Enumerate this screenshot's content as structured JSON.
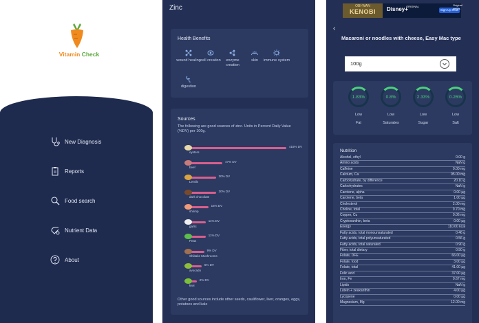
{
  "panel1": {
    "brand_part1": "Vitamin",
    "brand_part2": "Check",
    "menu": [
      {
        "label": "New Diagnosis",
        "icon": "stethoscope-icon"
      },
      {
        "label": "Reports",
        "icon": "clipboard-icon"
      },
      {
        "label": "Food search",
        "icon": "search-icon"
      },
      {
        "label": "Nutrient Data",
        "icon": "nutrient-data-icon"
      },
      {
        "label": "About",
        "icon": "question-icon"
      }
    ]
  },
  "panel2": {
    "title": "Zinc",
    "health_benefits_title": "Health Benefits",
    "benefits": [
      {
        "label": "wound healing",
        "icon": "molecule-icon"
      },
      {
        "label": "cell creation",
        "icon": "cell-icon"
      },
      {
        "label": "enzyme creation",
        "icon": "enzyme-icon"
      },
      {
        "label": "skin",
        "icon": "skin-icon"
      },
      {
        "label": "immune system",
        "icon": "immune-icon"
      },
      {
        "label": "digestion",
        "icon": "digestion-icon"
      }
    ],
    "sources_title": "Sources",
    "sources_desc": "The following are good sources of zinc. Units in Percent Daily Value (%DV) per 100g.",
    "sources": [
      {
        "name": "oysters",
        "dv": "415% DV",
        "percent": 415,
        "color": "#e8d9a8"
      },
      {
        "name": "beef",
        "dv": "47% DV",
        "percent": 47,
        "color": "#c97b7b"
      },
      {
        "name": "Lentils",
        "dv": "30% DV",
        "percent": 30,
        "color": "#d9a441"
      },
      {
        "name": "dark chocolate",
        "dv": "30% DV",
        "percent": 30,
        "color": "#7a4a2a"
      },
      {
        "name": "shrimp",
        "dv": "15% DV",
        "percent": 15,
        "color": "#f09a7a"
      },
      {
        "name": "garlic",
        "dv": "11% DV",
        "percent": 11,
        "color": "#eeeeee"
      },
      {
        "name": "Peas",
        "dv": "11% DV",
        "percent": 11,
        "color": "#5bbf4a"
      },
      {
        "name": "Shiitake Mushrooms",
        "dv": "9% DV",
        "percent": 9,
        "color": "#a07050"
      },
      {
        "name": "avocado",
        "dv": "6% DV",
        "percent": 6,
        "color": "#8fbf3a"
      },
      {
        "name": "kiwi",
        "dv": "2% DV",
        "percent": 2,
        "color": "#7cbf3a"
      }
    ],
    "other_sources": "Other good sources include other seeds, cauliflower, liver, oranges, eggs, potatoes and kale"
  },
  "panel3": {
    "ad": {
      "top_text": "Original series",
      "kenobi_small": "OBI-WAN",
      "kenobi_big": "KENOBI",
      "disney": "Disney+",
      "disney_small": "ORIGINAL",
      "signup": "Sign Up Now"
    },
    "back_glyph": "‹",
    "food_title": "Macaroni or noodles with cheese, Easy Mac type",
    "serving": "100g",
    "rings": [
      {
        "value": "1.83%",
        "level": "Low",
        "name": "Fat"
      },
      {
        "value": "0.8%",
        "level": "Low",
        "name": "Saturates"
      },
      {
        "value": "2.33%",
        "level": "Low",
        "name": "Sugar"
      },
      {
        "value": "0.26%",
        "level": "Low",
        "name": "Salt"
      }
    ],
    "ring_color": "#49d17a",
    "nutrition_title": "Nutrition",
    "nutrition": [
      {
        "name": "Alcohol, ethyl",
        "value": "0.00 g"
      },
      {
        "name": "Amino acids",
        "value": "NaN g"
      },
      {
        "name": "Caffeine",
        "value": "0.00 mg"
      },
      {
        "name": "Calcium, Ca",
        "value": "95.00 mg"
      },
      {
        "name": "Carbohydrate, by difference",
        "value": "20.10 g"
      },
      {
        "name": "Carbohydrates",
        "value": "NaN g"
      },
      {
        "name": "Carotene, alpha",
        "value": "0.00 µg"
      },
      {
        "name": "Carotene, beta",
        "value": "1.00 µg"
      },
      {
        "name": "Cholesterol",
        "value": "2.00 mg"
      },
      {
        "name": "Choline, total",
        "value": "9.70 mg"
      },
      {
        "name": "Copper, Cu",
        "value": "0.06 mg"
      },
      {
        "name": "Cryptoxanthin, beta",
        "value": "0.00 µg"
      },
      {
        "name": "Energy",
        "value": "110.00 kcal"
      },
      {
        "name": "Fatty acids, total monounsaturated",
        "value": "0.46 g"
      },
      {
        "name": "Fatty acids, total polyunsaturated",
        "value": "0.56 g"
      },
      {
        "name": "Fatty acids, total saturated",
        "value": "0.90 g"
      },
      {
        "name": "Fiber, total dietary",
        "value": "0.50 g"
      },
      {
        "name": "Folate, DFE",
        "value": "66.00 µg"
      },
      {
        "name": "Folate, food",
        "value": "3.00 µg"
      },
      {
        "name": "Folate, total",
        "value": "41.00 µg"
      },
      {
        "name": "Folic acid",
        "value": "37.00 µg"
      },
      {
        "name": "Iron, Fe",
        "value": "0.67 mg"
      },
      {
        "name": "Lipids",
        "value": "NaN g"
      },
      {
        "name": "Lutein + zeaxanthin",
        "value": "4.00 µg"
      },
      {
        "name": "Lycopene",
        "value": "0.00 µg"
      },
      {
        "name": "Magnesium, Mg",
        "value": "12.00 mg"
      }
    ]
  }
}
